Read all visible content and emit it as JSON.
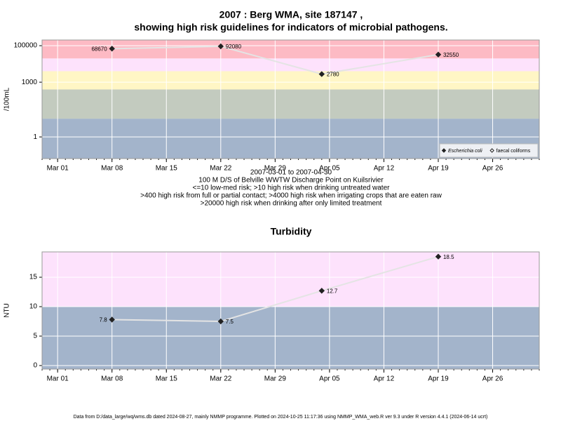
{
  "chart_data": [
    {
      "type": "line",
      "title": [
        "2007 : Berg WMA, site 187147 ,",
        "showing high risk guidelines for indicators of microbial pathogens."
      ],
      "y_label": "/100mL",
      "log_y": true,
      "grid": true,
      "legend": "bottom-right",
      "x": [
        "2007-03-08",
        "2007-03-22",
        "2007-04-04",
        "2007-04-19"
      ],
      "xlim": [
        "2007-02-27",
        "2007-05-02"
      ],
      "xticks": [
        {
          "value": "2007-03-01",
          "label": "Mar 01"
        },
        {
          "value": "2007-03-08",
          "label": "Mar 08"
        },
        {
          "value": "2007-03-15",
          "label": "Mar 15"
        },
        {
          "value": "2007-03-22",
          "label": "Mar 22"
        },
        {
          "value": "2007-03-29",
          "label": "Mar 29"
        },
        {
          "value": "2007-04-05",
          "label": "Apr 05"
        },
        {
          "value": "2007-04-12",
          "label": "Apr 12"
        },
        {
          "value": "2007-04-19",
          "label": "Apr 19"
        },
        {
          "value": "2007-04-26",
          "label": "Apr 26"
        }
      ],
      "ylim": [
        0.065,
        205000
      ],
      "yticks": [
        1,
        1000,
        100000
      ],
      "bands": [
        {
          "from": 0.065,
          "to": 10,
          "color": "#a3b4cb"
        },
        {
          "from": 10,
          "to": 400,
          "color": "#c3cbbf"
        },
        {
          "from": 400,
          "to": 4000,
          "color": "#fff6c5"
        },
        {
          "from": 4000,
          "to": 20000,
          "color": "#fde2fc"
        },
        {
          "from": 20000,
          "to": 205000,
          "color": "#fdbac4"
        }
      ],
      "series": [
        {
          "name": "Escherichia coli",
          "color": "#222222",
          "marker": "filled",
          "values": [
            68670,
            92080,
            2780,
            32550
          ]
        },
        {
          "name": "faecal coliforms",
          "color": "#222222",
          "marker": "open",
          "values": [
            null,
            null,
            null,
            null
          ]
        }
      ],
      "notes": [
        "2007-03-01 to 2007-04-30",
        "100 M D/S of Belville WWTW Discharge Point on Kuilsrivier",
        "<=10 low-med risk; >10 high risk when drinking untreated water",
        ">400 high risk from full or partial contact; >4000 high risk when irrigating crops that are eaten raw",
        ">20000 high risk when drinking after only limited treatment"
      ]
    },
    {
      "type": "line",
      "title": [
        "Turbidity"
      ],
      "y_label": "NTU",
      "log_y": false,
      "grid": true,
      "x": [
        "2007-03-08",
        "2007-03-22",
        "2007-04-04",
        "2007-04-19"
      ],
      "xlim": [
        "2007-02-27",
        "2007-05-02"
      ],
      "xticks": [
        {
          "value": "2007-03-01",
          "label": "Mar 01"
        },
        {
          "value": "2007-03-08",
          "label": "Mar 08"
        },
        {
          "value": "2007-03-15",
          "label": "Mar 15"
        },
        {
          "value": "2007-03-22",
          "label": "Mar 22"
        },
        {
          "value": "2007-03-29",
          "label": "Mar 29"
        },
        {
          "value": "2007-04-05",
          "label": "Apr 05"
        },
        {
          "value": "2007-04-12",
          "label": "Apr 12"
        },
        {
          "value": "2007-04-19",
          "label": "Apr 19"
        },
        {
          "value": "2007-04-26",
          "label": "Apr 26"
        }
      ],
      "ylim": [
        -0.6,
        19.3
      ],
      "yticks": [
        0,
        5,
        10,
        15
      ],
      "bands": [
        {
          "from": -0.6,
          "to": 10,
          "color": "#a3b4cb"
        },
        {
          "from": 10,
          "to": 19.3,
          "color": "#fde2fc"
        }
      ],
      "series": [
        {
          "name": "Turbidity",
          "color": "#222222",
          "marker": "filled",
          "values": [
            7.8,
            7.5,
            12.7,
            18.5
          ]
        }
      ]
    }
  ],
  "footer": "Data from D:/data_large/wq/wms.db dated 2024-08-27, mainly NMMP programme. Plotted on 2024-10-25 11:17:36 using NMMP_WMA_web.R ver 9.3 under R version 4.4.1 (2024-06-14 ucrt)"
}
